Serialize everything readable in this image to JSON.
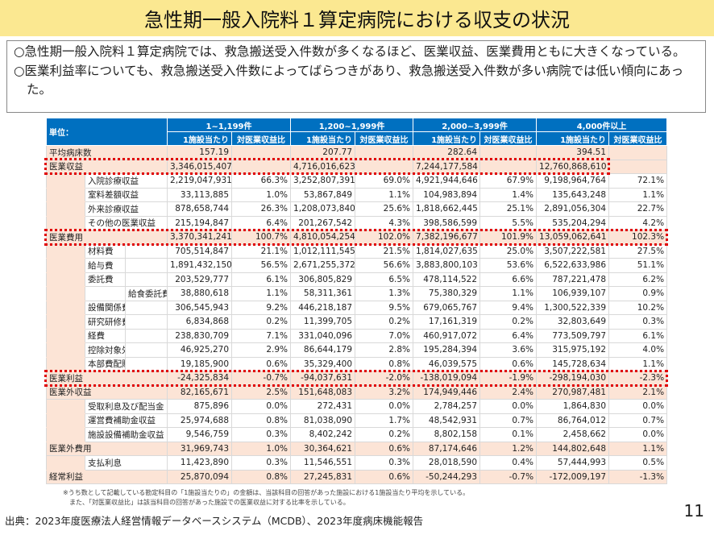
{
  "title": "急性期一般入院料１算定病院における収支の状況",
  "summary": [
    "○急性期一般入院料１算定病院では、救急搬送受入件数が多くなるほど、医業収益、医業費用ともに大きくなっている。",
    "○医業利益率についても、救急搬送受入件数によってばらつきがあり、救急搬送受入件数が多い病院では低い傾向にあった。"
  ],
  "table": {
    "unit_label": "単位：",
    "groups": [
      "1~1,199件",
      "1,200~1,999件",
      "2,000~3,999件",
      "4,000件以上"
    ],
    "subheaders": [
      "1施設当たり",
      "対医業収益比"
    ],
    "rows": [
      {
        "label": "平均病床数",
        "level": 0,
        "values": [
          "157.19",
          "",
          "207.77",
          "",
          "282.64",
          "",
          "394.51",
          ""
        ]
      },
      {
        "label": "医業収益",
        "level": 0,
        "values": [
          "3,346,015,407",
          "",
          "4,716,016,623",
          "",
          "7,244,177,584",
          "",
          "12,760,868,610",
          ""
        ]
      },
      {
        "label": "入院診療収益",
        "level": 1,
        "values": [
          "2,219,047,931",
          "66.3%",
          "3,252,807,391",
          "69.0%",
          "4,921,944,646",
          "67.9%",
          "9,198,964,764",
          "72.1%"
        ]
      },
      {
        "label": "室料差額収益",
        "level": 1,
        "values": [
          "33,113,885",
          "1.0%",
          "53,867,849",
          "1.1%",
          "104,983,894",
          "1.4%",
          "135,643,248",
          "1.1%"
        ]
      },
      {
        "label": "外来診療収益",
        "level": 1,
        "values": [
          "878,658,744",
          "26.3%",
          "1,208,073,840",
          "25.6%",
          "1,818,662,445",
          "25.1%",
          "2,891,056,304",
          "22.7%"
        ]
      },
      {
        "label": "その他の医業収益",
        "level": 1,
        "values": [
          "215,194,847",
          "6.4%",
          "201,267,542",
          "4.3%",
          "398,586,599",
          "5.5%",
          "535,204,294",
          "4.2%"
        ]
      },
      {
        "label": "医業費用",
        "level": 0,
        "values": [
          "3,370,341,241",
          "100.7%",
          "4,810,054,254",
          "102.0%",
          "7,382,196,677",
          "101.9%",
          "13,059,062,641",
          "102.3%"
        ]
      },
      {
        "label": "材料費",
        "level": 1,
        "values": [
          "705,514,847",
          "21.1%",
          "1,012,111,545",
          "21.5%",
          "1,814,027,635",
          "25.0%",
          "3,507,222,581",
          "27.5%"
        ]
      },
      {
        "label": "給与費",
        "level": 1,
        "values": [
          "1,891,432,150",
          "56.5%",
          "2,671,255,372",
          "56.6%",
          "3,883,800,103",
          "53.6%",
          "6,522,633,986",
          "51.1%"
        ]
      },
      {
        "label": "委託費",
        "level": 1,
        "values": [
          "203,529,777",
          "6.1%",
          "306,805,829",
          "6.5%",
          "478,114,522",
          "6.6%",
          "787,221,478",
          "6.2%"
        ]
      },
      {
        "label": "給食委託費",
        "level": 2,
        "values": [
          "38,880,618",
          "1.1%",
          "58,311,361",
          "1.3%",
          "75,380,329",
          "1.1%",
          "106,939,107",
          "0.9%"
        ]
      },
      {
        "label": "設備関係費",
        "level": 1,
        "values": [
          "306,545,943",
          "9.2%",
          "446,218,187",
          "9.5%",
          "679,065,767",
          "9.4%",
          "1,300,522,339",
          "10.2%"
        ]
      },
      {
        "label": "研究研修費",
        "level": 1,
        "values": [
          "6,834,868",
          "0.2%",
          "11,399,705",
          "0.2%",
          "17,161,319",
          "0.2%",
          "32,803,649",
          "0.3%"
        ]
      },
      {
        "label": "経費",
        "level": 1,
        "values": [
          "238,830,709",
          "7.1%",
          "331,040,096",
          "7.0%",
          "460,917,072",
          "6.4%",
          "773,509,797",
          "6.1%"
        ]
      },
      {
        "label": "控除対象外消費税等負",
        "level": 1,
        "values": [
          "46,925,270",
          "2.9%",
          "86,644,179",
          "2.8%",
          "195,284,394",
          "3.6%",
          "315,975,192",
          "4.0%"
        ]
      },
      {
        "label": "本部費配賦額",
        "level": 1,
        "values": [
          "19,185,900",
          "0.6%",
          "35,329,400",
          "0.8%",
          "46,039,575",
          "0.6%",
          "145,728,634",
          "1.1%"
        ]
      },
      {
        "label": "医業利益",
        "level": 0,
        "values": [
          "-24,325,834",
          "-0.7%",
          "-94,037,631",
          "-2.0%",
          "-138,019,094",
          "-1.9%",
          "-298,194,030",
          "-2.3%"
        ]
      },
      {
        "label": "医業外収益",
        "level": 0,
        "values": [
          "82,165,671",
          "2.5%",
          "151,648,083",
          "3.2%",
          "174,949,446",
          "2.4%",
          "270,987,481",
          "2.1%"
        ]
      },
      {
        "label": "受取利息及び配当金",
        "level": 1,
        "values": [
          "875,896",
          "0.0%",
          "272,431",
          "0.0%",
          "2,784,257",
          "0.0%",
          "1,864,830",
          "0.0%"
        ]
      },
      {
        "label": "運営費補助金収益",
        "level": 1,
        "values": [
          "25,974,688",
          "0.8%",
          "81,038,090",
          "1.7%",
          "48,542,931",
          "0.7%",
          "86,764,012",
          "0.7%"
        ]
      },
      {
        "label": "施設設備補助金収益",
        "level": 1,
        "values": [
          "9,546,759",
          "0.3%",
          "8,402,242",
          "0.2%",
          "8,802,158",
          "0.1%",
          "2,458,662",
          "0.0%"
        ]
      },
      {
        "label": "医業外費用",
        "level": 0,
        "values": [
          "31,969,743",
          "1.0%",
          "30,364,621",
          "0.6%",
          "87,174,646",
          "1.2%",
          "144,802,648",
          "1.1%"
        ]
      },
      {
        "label": "支払利息",
        "level": 1,
        "values": [
          "11,423,890",
          "0.3%",
          "11,546,551",
          "0.3%",
          "28,018,590",
          "0.4%",
          "57,444,993",
          "0.5%"
        ]
      },
      {
        "label": "経常利益",
        "level": 0,
        "values": [
          "25,870,094",
          "0.8%",
          "27,245,831",
          "0.6%",
          "-50,244,293",
          "-0.7%",
          "-172,009,197",
          "-1.3%"
        ]
      }
    ]
  },
  "footnotes": [
    "※うち数として記載している勘定科目の「1施設当たりの」の金額は、当該科目の回答があった施設における1施設当たり平均を示している。",
    "また、「対医業収益比」は該当科目の回答があった施設での医業収益に対する比率を示している。"
  ],
  "source": "出典：2023年度医療法人経営情報データベースシステム（MCDB）、2023年度病床機能報告",
  "page_number": "11",
  "colors": {
    "title_band": "#fbe891",
    "header_blue": "#0070c0",
    "highlight_pink": "#fce4d6",
    "red_box": "#e00000"
  }
}
